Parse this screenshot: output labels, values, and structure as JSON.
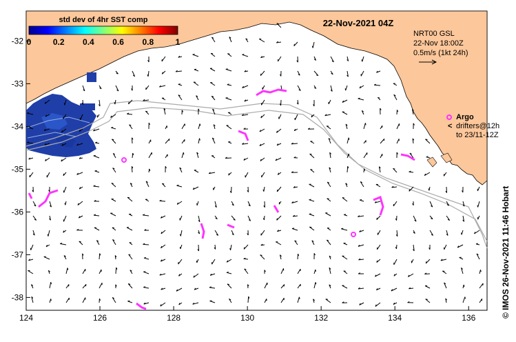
{
  "map": {
    "title": "22-Nov-2021 04Z",
    "colorbar": {
      "title": "std dev of 4hr SST comp",
      "tick_labels": [
        "0",
        "0.2",
        "0.4",
        "0.6",
        "0.8",
        "1"
      ],
      "colormap": "jet"
    },
    "current_legend": {
      "line1": "NRT00 GSL",
      "line2": "22-Nov 18:00Z",
      "line3": "0.5m/s (1kt 24h)"
    },
    "argo_legend": {
      "argo_label": "Argo",
      "drifters_line1": "drifters@12h",
      "drifters_line2": "to 23/11-12Z"
    },
    "credit": "© IMOS 26-Nov-2021 11:46 Hobart",
    "x_tick_labels": [
      "124",
      "126",
      "128",
      "130",
      "132",
      "134",
      "136"
    ],
    "y_tick_labels": [
      "-32",
      "-33",
      "-34",
      "-35",
      "-36",
      "-37",
      "-38"
    ],
    "extent": {
      "lon": [
        124,
        136.5
      ],
      "lat": [
        -38.3,
        -31.3
      ]
    },
    "colors": {
      "land": "#fcc79a",
      "ocean": "#ffffff",
      "sst_patch": "#1f3ea8",
      "argo": "#ff33ff",
      "isobath": "#aaaaaa"
    }
  }
}
